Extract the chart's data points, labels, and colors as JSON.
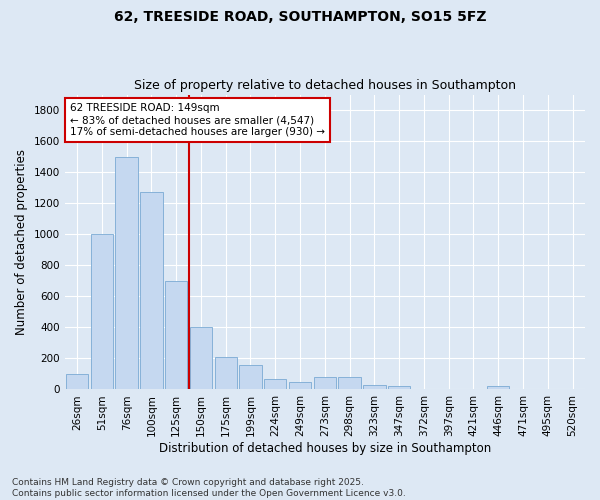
{
  "title": "62, TREESIDE ROAD, SOUTHAMPTON, SO15 5FZ",
  "subtitle": "Size of property relative to detached houses in Southampton",
  "xlabel": "Distribution of detached houses by size in Southampton",
  "ylabel": "Number of detached properties",
  "categories": [
    "26sqm",
    "51sqm",
    "76sqm",
    "100sqm",
    "125sqm",
    "150sqm",
    "175sqm",
    "199sqm",
    "224sqm",
    "249sqm",
    "273sqm",
    "298sqm",
    "323sqm",
    "347sqm",
    "372sqm",
    "397sqm",
    "421sqm",
    "446sqm",
    "471sqm",
    "495sqm",
    "520sqm"
  ],
  "values": [
    100,
    1000,
    1500,
    1270,
    700,
    400,
    210,
    155,
    70,
    50,
    80,
    80,
    30,
    20,
    5,
    0,
    0,
    20,
    0,
    0,
    0
  ],
  "bar_color": "#c5d8f0",
  "bar_edge_color": "#7aaad4",
  "vline_color": "#cc0000",
  "annotation_text": "62 TREESIDE ROAD: 149sqm\n← 83% of detached houses are smaller (4,547)\n17% of semi-detached houses are larger (930) →",
  "annotation_box_color": "#ffffff",
  "annotation_box_edge_color": "#cc0000",
  "ylim": [
    0,
    1900
  ],
  "yticks": [
    0,
    200,
    400,
    600,
    800,
    1000,
    1200,
    1400,
    1600,
    1800
  ],
  "bg_color": "#dde8f4",
  "plot_bg_color": "#dde8f4",
  "footer": "Contains HM Land Registry data © Crown copyright and database right 2025.\nContains public sector information licensed under the Open Government Licence v3.0.",
  "title_fontsize": 10,
  "subtitle_fontsize": 9,
  "axis_label_fontsize": 8.5,
  "tick_fontsize": 7.5,
  "annotation_fontsize": 7.5,
  "footer_fontsize": 6.5
}
